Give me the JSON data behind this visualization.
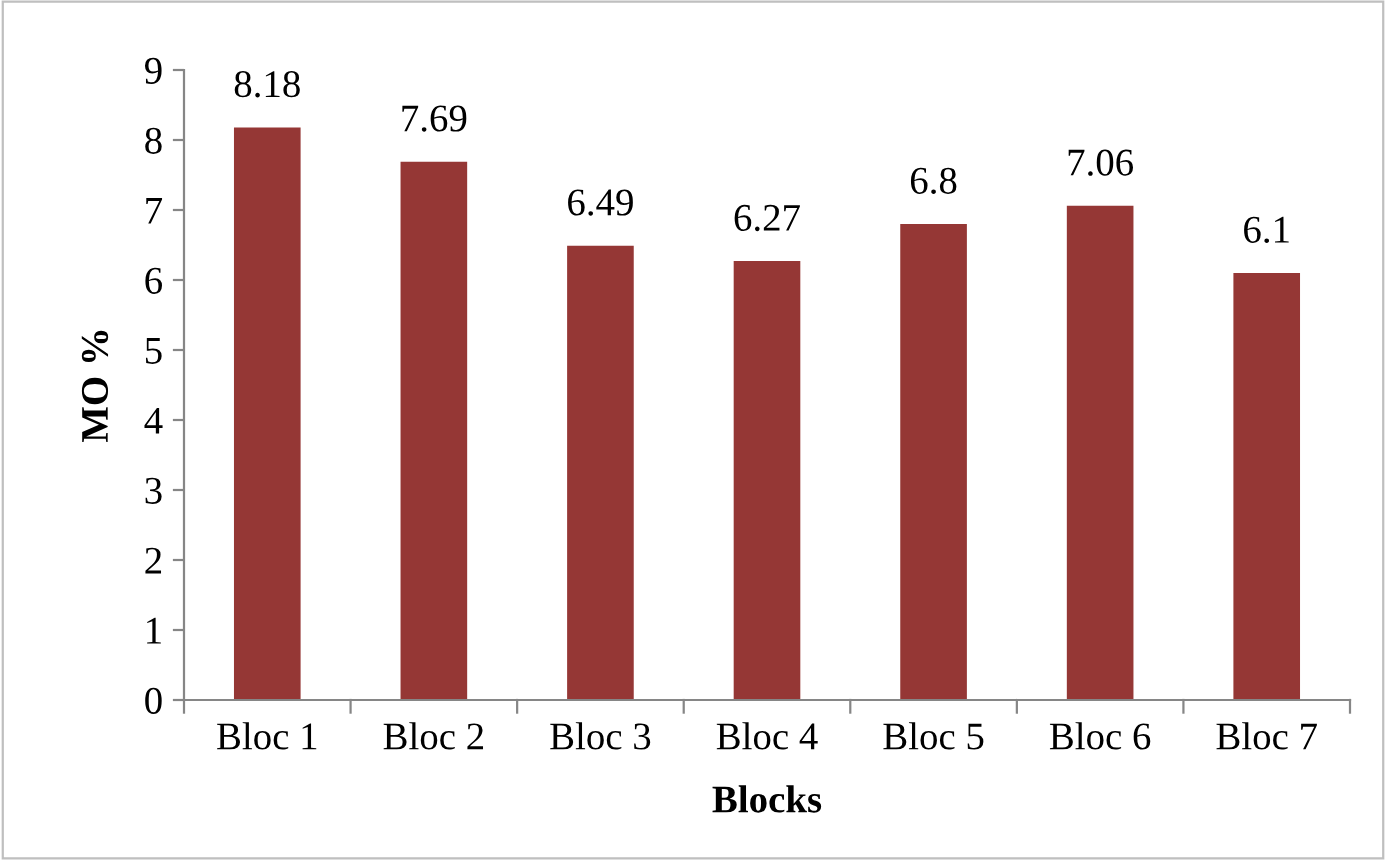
{
  "chart_data": {
    "type": "bar",
    "xlabel": "Blocks",
    "ylabel": "MO %",
    "categories": [
      "Bloc 1",
      "Bloc 2",
      "Bloc 3",
      "Bloc 4",
      "Bloc 5",
      "Bloc 6",
      "Bloc 7"
    ],
    "values": [
      8.18,
      7.69,
      6.49,
      6.27,
      6.8,
      7.06,
      6.1
    ],
    "color": "#953735",
    "ylim": [
      0,
      9
    ],
    "yticks": [
      0,
      1,
      2,
      3,
      4,
      5,
      6,
      7,
      8,
      9
    ],
    "grid": false,
    "data_labels": true
  }
}
